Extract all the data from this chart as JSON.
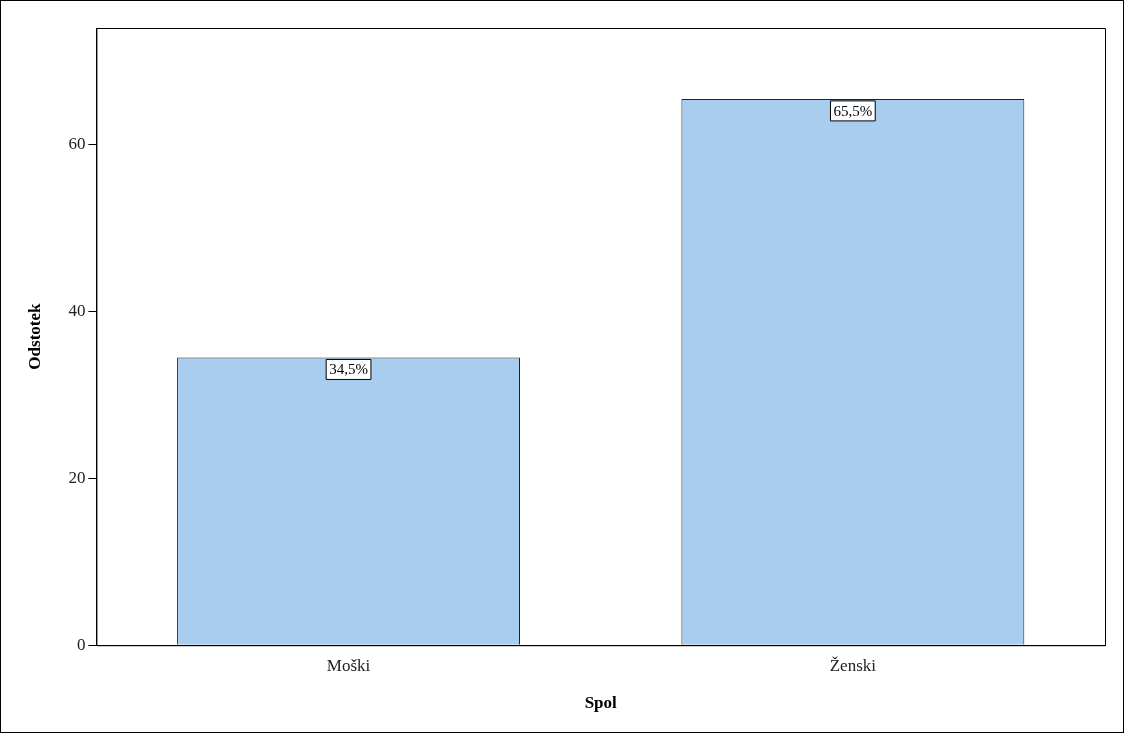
{
  "chart_data": {
    "type": "bar",
    "xlabel": "Spol",
    "ylabel": "Odstotek",
    "categories": [
      "Moški",
      "Ženski"
    ],
    "values": [
      34.5,
      65.5
    ],
    "color": "#a9cdee",
    "value_labels": [
      "34,5%",
      "65,5%"
    ],
    "ylim": [
      0,
      74
    ],
    "yticks": [
      0,
      20,
      40,
      60
    ],
    "grid": false,
    "legend": false
  }
}
